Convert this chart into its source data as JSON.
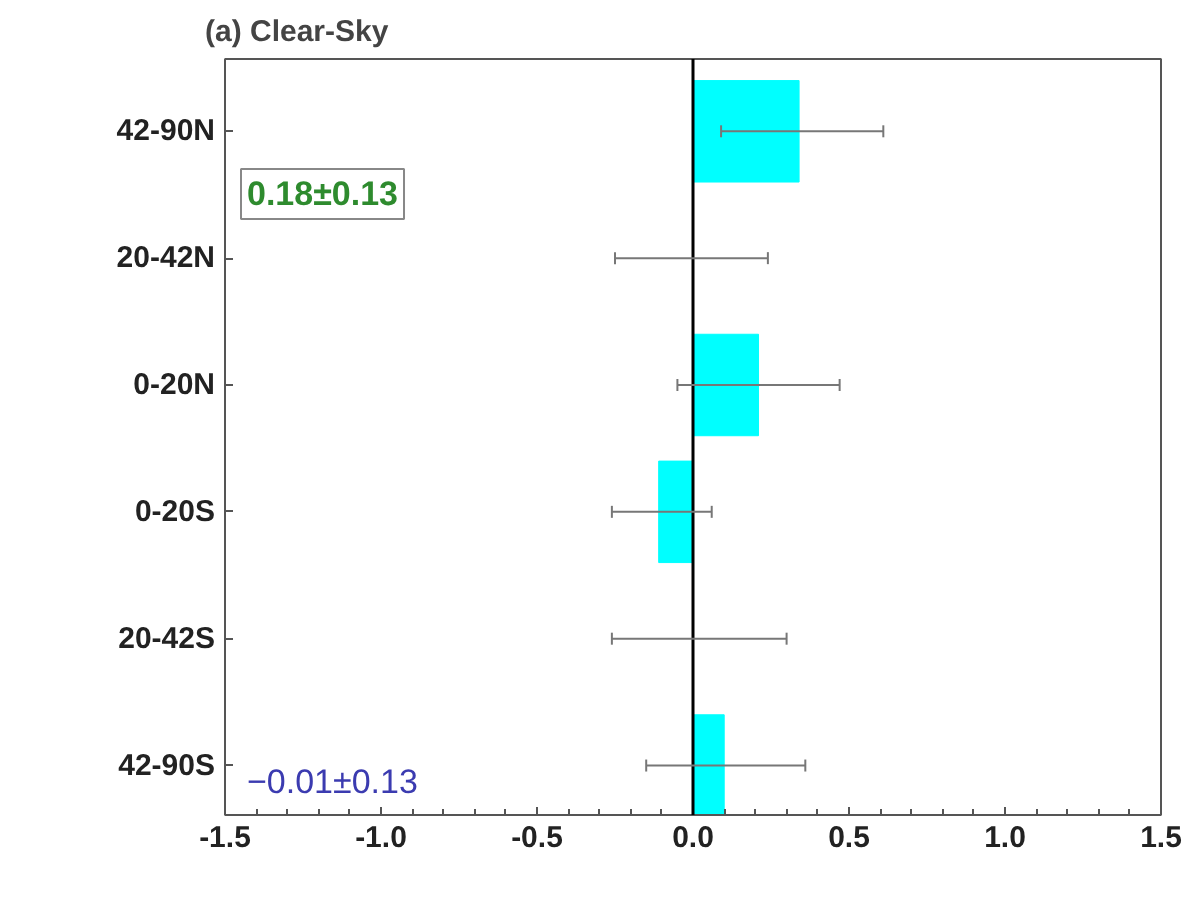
{
  "chart_data": {
    "type": "bar",
    "orientation": "horizontal",
    "title": "(a) Clear-Sky",
    "categories": [
      "42-90N",
      "20-42N",
      "0-20N",
      "0-20S",
      "20-42S",
      "42-90S"
    ],
    "values": [
      0.34,
      0.0,
      0.21,
      -0.11,
      0.0,
      0.1
    ],
    "errors": [
      [
        0.09,
        0.61
      ],
      [
        -0.25,
        0.24
      ],
      [
        -0.05,
        0.47
      ],
      [
        -0.26,
        0.06
      ],
      [
        -0.26,
        0.3
      ],
      [
        -0.15,
        0.36
      ]
    ],
    "color": "#00ffff",
    "xlim": [
      -1.5,
      1.5
    ],
    "xticks": [
      -1.5,
      {
        "value": -1,
        "label": "-1.0"
      },
      -0.5,
      {
        "value": 0,
        "label": "0.0"
      },
      0.5,
      {
        "value": 1,
        "label": "1.0"
      },
      1.5
    ],
    "ref_lines": [
      {
        "axis": "x",
        "value": 0,
        "label": null,
        "color": "#000000"
      }
    ],
    "annotations": [
      "0.18±0.13",
      "−0.01±0.13"
    ],
    "grid": false
  }
}
